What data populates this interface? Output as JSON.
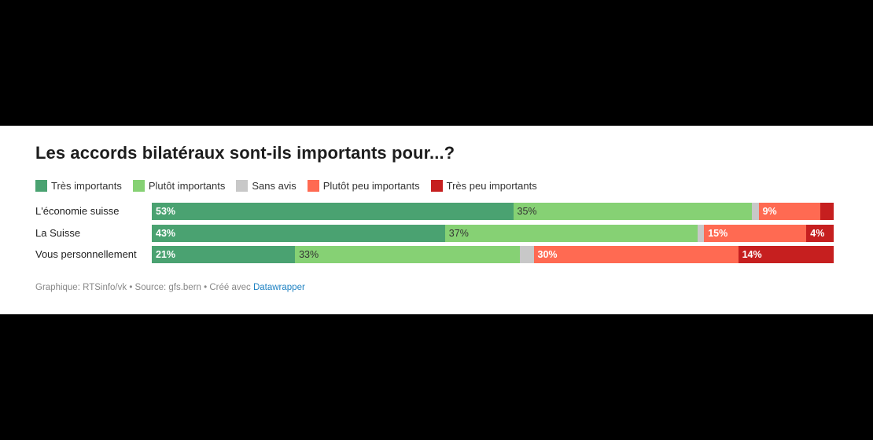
{
  "chart_data": {
    "type": "bar",
    "orientation": "horizontal",
    "stacked": true,
    "title": "Les accords bilatéraux sont-ils importants pour...?",
    "categories": [
      "L'économie suisse",
      "La Suisse",
      "Vous personnellement"
    ],
    "series": [
      {
        "name": "Très importants",
        "color": "#4aa271",
        "values": [
          53,
          43,
          21
        ],
        "labels": [
          "53%",
          "43%",
          "21%"
        ]
      },
      {
        "name": "Plutôt importants",
        "color": "#86d174",
        "values": [
          35,
          37,
          33
        ],
        "labels": [
          "35%",
          "37%",
          "33%"
        ]
      },
      {
        "name": "Sans avis",
        "color": "#c8c8c8",
        "values": [
          1,
          1,
          2
        ],
        "labels": [
          "",
          "",
          ""
        ]
      },
      {
        "name": "Plutôt peu importants",
        "color": "#ff6a52",
        "values": [
          9,
          15,
          30
        ],
        "labels": [
          "9%",
          "15%",
          "30%"
        ]
      },
      {
        "name": "Très peu importants",
        "color": "#c61f1f",
        "values": [
          2,
          4,
          14
        ],
        "labels": [
          "",
          "4%",
          "14%"
        ]
      }
    ],
    "xlim": [
      0,
      100
    ],
    "grid": false,
    "legend_position": "top"
  },
  "footer": {
    "credit_text": "Graphique: RTSinfo/vk • Source: gfs.bern • Créé avec",
    "link_text": "Datawrapper"
  }
}
